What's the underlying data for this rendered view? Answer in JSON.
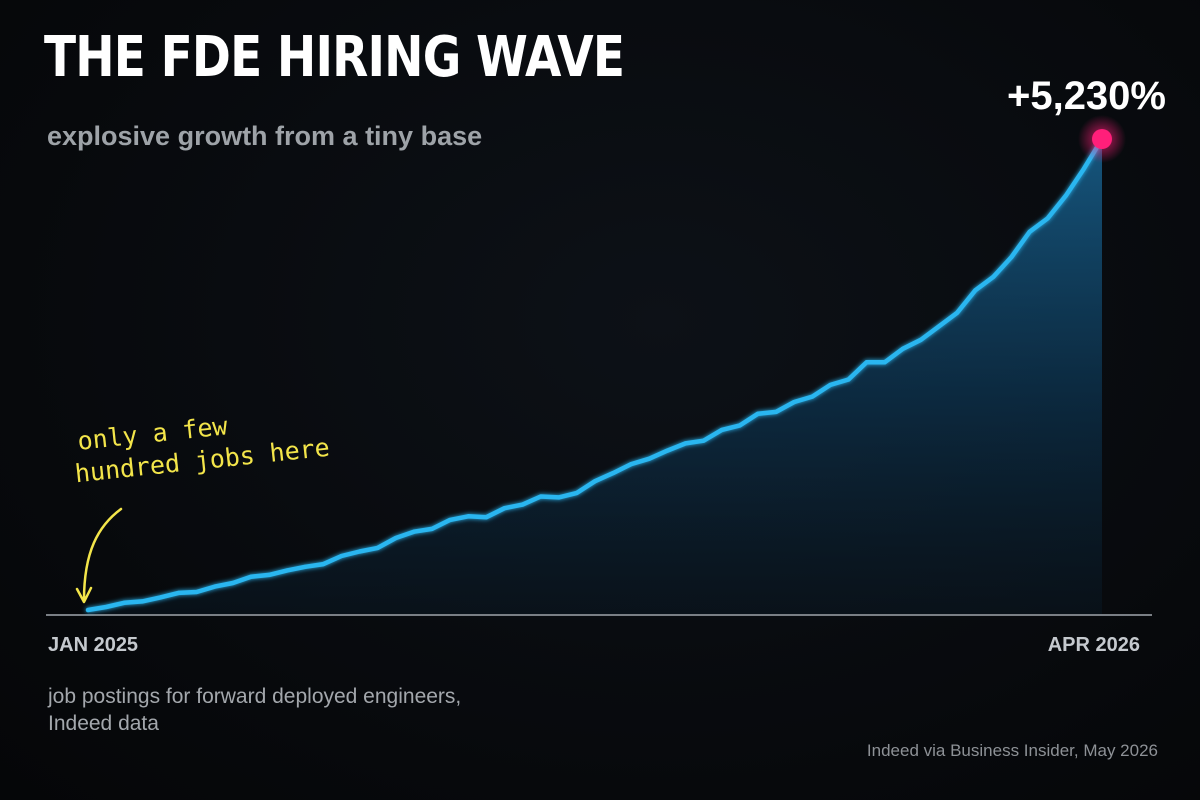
{
  "header": {
    "title": "THE FDE HIRING WAVE",
    "subtitle": "explosive growth from a tiny base"
  },
  "annotation": {
    "line1": "only a few",
    "line2": "hundred jobs here"
  },
  "callout": {
    "text": "+5,230%"
  },
  "footer": {
    "caption": "job postings for forward deployed engineers, Indeed data",
    "source": "Indeed via Business Insider, May 2026"
  },
  "colors": {
    "background": "#07090c",
    "line": "#29b6f0",
    "marker": "#ff1f7a",
    "annotation": "#f3e54a",
    "axis": "#7a7f85"
  },
  "chart_data": {
    "type": "area",
    "x_start": "JAN 2025",
    "x_end": "APR 2026",
    "x_ticks": [
      "JAN 2025",
      "APR 2026"
    ],
    "ylabel": "",
    "xlabel": "",
    "yaxis_visible": false,
    "grid": false,
    "legend": "none",
    "y_unit": "percent growth vs. Jan 2025",
    "y_end_label": "+5,230%",
    "series": [
      {
        "values": [
          0,
          33,
          80,
          95,
          140,
          190,
          200,
          260,
          300,
          370,
          390,
          440,
          480,
          510,
          600,
          650,
          690,
          800,
          870,
          900,
          1000,
          1040,
          1030,
          1130,
          1170,
          1260,
          1250,
          1300,
          1430,
          1520,
          1620,
          1680,
          1770,
          1850,
          1880,
          2000,
          2050,
          2180,
          2200,
          2310,
          2370,
          2500,
          2560,
          2750,
          2750,
          2900,
          3000,
          3150,
          3300,
          3550,
          3700,
          3920,
          4200,
          4350,
          4600,
          4900,
          5230
        ]
      }
    ],
    "end_marker": true
  }
}
